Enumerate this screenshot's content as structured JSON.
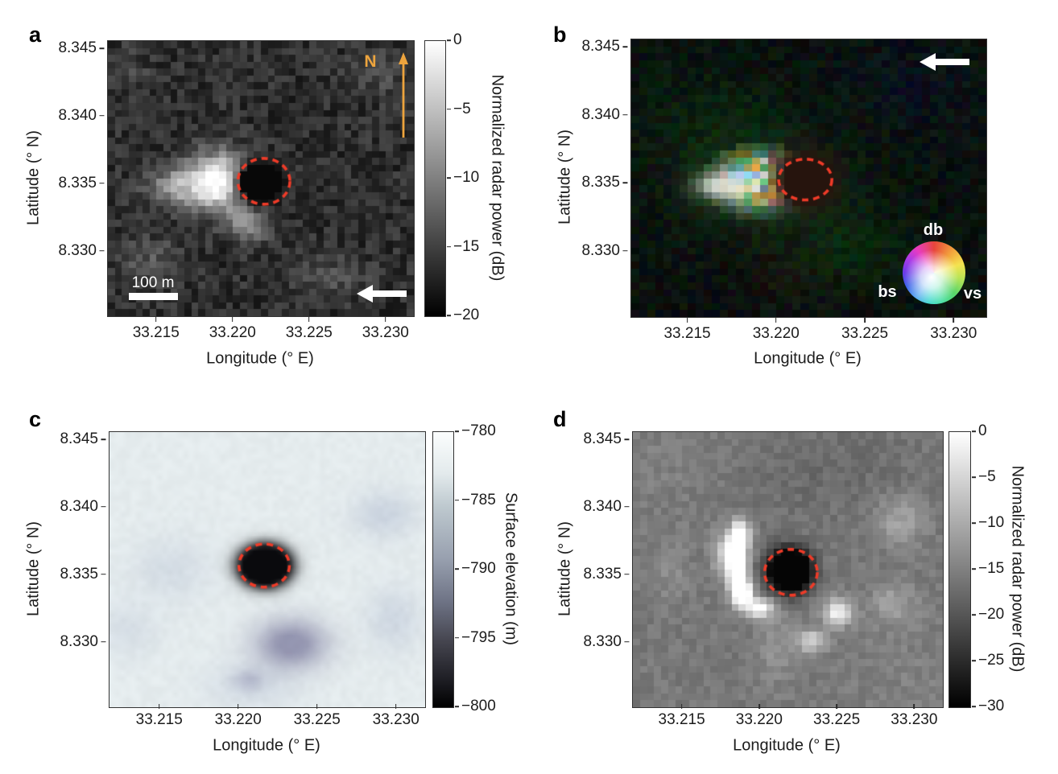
{
  "figure": {
    "colors": {
      "dashed_circle": "#ee3b28",
      "north_arrow": "#eda43d",
      "text": "#1c1c1c"
    },
    "panels": [
      {
        "label": "a",
        "xlabel": "Longitude (° E)",
        "ylabel": "Latitude (° N)",
        "xticks": [
          "33.215",
          "33.220",
          "33.225",
          "33.230"
        ],
        "yticks": [
          "8.345",
          "8.340",
          "8.335",
          "8.330"
        ],
        "colorbar": {
          "label": "Normalized radar power (dB)",
          "ticks": [
            "0",
            "−5",
            "−10",
            "−15",
            "−20"
          ]
        },
        "north_label": "N",
        "scalebar_label": "100 m"
      },
      {
        "label": "b",
        "xlabel": "Longitude (° E)",
        "ylabel": "Latitude (° N)",
        "xticks": [
          "33.215",
          "33.220",
          "33.225",
          "33.230"
        ],
        "yticks": [
          "8.345",
          "8.340",
          "8.335",
          "8.330"
        ],
        "wheel": {
          "top": "db",
          "left": "bs",
          "right": "vs"
        }
      },
      {
        "label": "c",
        "xlabel": "Longitude (° E)",
        "ylabel": "Latitude (° N)",
        "xticks": [
          "33.215",
          "33.220",
          "33.225",
          "33.230"
        ],
        "yticks": [
          "8.345",
          "8.340",
          "8.335",
          "8.330"
        ],
        "colorbar": {
          "label": "Surface elevation (m)",
          "ticks": [
            "−780",
            "−785",
            "−790",
            "−795",
            "−800"
          ]
        }
      },
      {
        "label": "d",
        "xlabel": "Longitude (° E)",
        "ylabel": "Latitude (° N)",
        "xticks": [
          "33.215",
          "33.220",
          "33.225",
          "33.230"
        ],
        "yticks": [
          "8.345",
          "8.340",
          "8.335",
          "8.330"
        ],
        "colorbar": {
          "label": "Normalized radar power (dB)",
          "ticks": [
            "0",
            "−5",
            "−10",
            "−15",
            "−20",
            "−25",
            "−30"
          ]
        }
      }
    ]
  },
  "chart_data": [
    {
      "type": "heatmap",
      "panel": "a",
      "description": "Pixelated grayscale radar backscatter map: strong bright echo immediately west of a radar-dark pit outlined by a red dashed circle; speckled dark background.",
      "xlabel": "Longitude (° E)",
      "ylabel": "Latitude (° N)",
      "xlim": [
        33.2118,
        33.2318
      ],
      "ylim": [
        8.3252,
        8.3456
      ],
      "xticks": [
        33.215,
        33.22,
        33.225,
        33.23
      ],
      "yticks": [
        8.345,
        8.34,
        8.335,
        8.33
      ],
      "colorbar": {
        "label": "Normalized radar power (dB)",
        "range": [
          -20,
          0
        ],
        "ticks": [
          0,
          -5,
          -10,
          -15,
          -20
        ],
        "colormap": "gray"
      },
      "features": {
        "pit_circle": {
          "lon": 33.222,
          "lat": 8.3352,
          "radius_deg": 0.0017,
          "style": "red dashed"
        },
        "bright_radar_echo": {
          "lon": 33.219,
          "lat": 8.3352
        },
        "north_arrow": "up",
        "scale_bar": {
          "length_m": 100
        },
        "look_direction_arrow": "left (bottom right)"
      }
    },
    {
      "type": "heatmap",
      "panel": "b",
      "description": "Dark RGB polarimetric composite: multicoloured (white/yellow/cyan/green/pink) echo cluster west of the pit (red dashed circle); colour-wheel legend with axes db (top), bs (left), vs (right).",
      "xlabel": "Longitude (° E)",
      "ylabel": "Latitude (° N)",
      "xlim": [
        33.2118,
        33.2318
      ],
      "ylim": [
        8.3252,
        8.3456
      ],
      "xticks": [
        33.215,
        33.22,
        33.225,
        33.23
      ],
      "yticks": [
        8.345,
        8.34,
        8.335,
        8.33
      ],
      "features": {
        "pit_circle": {
          "lon": 33.2216,
          "lat": 8.3353,
          "radius_deg": 0.0015,
          "style": "red dashed"
        },
        "color_wheel_legend": {
          "top": "db",
          "left": "bs",
          "right": "vs"
        },
        "look_direction_arrow": "left (top right)"
      }
    },
    {
      "type": "heatmap",
      "panel": "c",
      "description": "Smooth pale blue-grey digital elevation map: near-circular black depression (pit) at centre inside red dashed circle; broad shallow purple-grey low south-east of the pit.",
      "xlabel": "Longitude (° E)",
      "ylabel": "Latitude (° N)",
      "xlim": [
        33.2118,
        33.2318
      ],
      "ylim": [
        8.3252,
        8.3456
      ],
      "xticks": [
        33.215,
        33.22,
        33.225,
        33.23
      ],
      "yticks": [
        8.345,
        8.34,
        8.335,
        8.33
      ],
      "colorbar": {
        "label": "Surface elevation (m)",
        "range": [
          -800,
          -780
        ],
        "ticks": [
          -780,
          -785,
          -790,
          -795,
          -800
        ],
        "colormap": "blue-grey to black"
      },
      "features": {
        "pit_circle": {
          "lon": 33.2216,
          "lat": 8.3357,
          "radius_deg": 0.0016,
          "style": "red dashed"
        },
        "pit_depression": {
          "lon": 33.2216,
          "lat": 8.3357
        },
        "low_terrain_patch": {
          "lon": 33.2234,
          "lat": 8.3296
        }
      }
    },
    {
      "type": "heatmap",
      "panel": "d",
      "description": "Medium-grey pixelated radar map: bright white crescent echo hugging the west rim of the black pit (red dashed circle); smaller bright patches to the south-east.",
      "xlabel": "Longitude (° E)",
      "ylabel": "Latitude (° N)",
      "xlim": [
        33.2118,
        33.2318
      ],
      "ylim": [
        8.3252,
        8.3456
      ],
      "xticks": [
        33.215,
        33.22,
        33.225,
        33.23
      ],
      "yticks": [
        8.345,
        8.34,
        8.335,
        8.33
      ],
      "colorbar": {
        "label": "Normalized radar power (dB)",
        "range": [
          -30,
          0
        ],
        "ticks": [
          0,
          -5,
          -10,
          -15,
          -20,
          -25,
          -30
        ],
        "colormap": "gray"
      },
      "features": {
        "pit_circle": {
          "lon": 33.222,
          "lat": 8.3352,
          "radius_deg": 0.0017,
          "style": "red dashed"
        },
        "bright_radar_echo": {
          "lon": 33.2186,
          "lat": 8.3356
        }
      }
    }
  ]
}
